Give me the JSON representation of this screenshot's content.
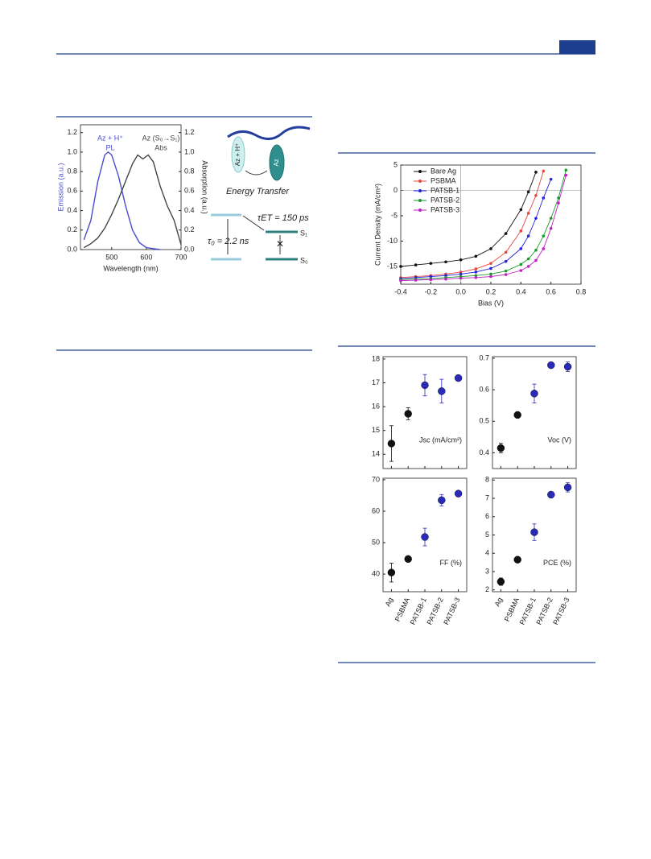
{
  "figure1": {
    "chart_data": {
      "type": "line",
      "xlabel": "Wavelength (nm)",
      "ylabel": "Emission (a.u.)",
      "y2label": "Absorption (a.u.)",
      "xlim": [
        410,
        700
      ],
      "xticks": [
        500,
        600,
        700
      ],
      "ylim": [
        0,
        1.28
      ],
      "yticks": [
        {
          "value": 0,
          "label": "0.0"
        },
        0.2,
        0.4,
        0.6,
        0.8,
        {
          "value": 1,
          "label": "1.0"
        },
        1.2
      ],
      "y2lim": [
        0,
        1.28
      ],
      "y2ticks": [
        {
          "value": 0,
          "label": "0.0"
        },
        0.2,
        0.4,
        0.6,
        0.8,
        {
          "value": 1,
          "label": "1.0"
        },
        1.2
      ],
      "series": [
        {
          "name": "Az + H⁺",
          "note_label": "PL",
          "color": "#4b4bd1",
          "x": [
            420,
            440,
            460,
            480,
            490,
            500,
            520,
            540,
            560,
            580,
            600,
            620,
            640
          ],
          "values": [
            0.1,
            0.3,
            0.7,
            0.97,
            1.0,
            0.97,
            0.75,
            0.45,
            0.2,
            0.07,
            0.02,
            0.01,
            0.0
          ]
        },
        {
          "name": "Az (S₀→S₁)",
          "note_label": "Abs",
          "color": "#444444",
          "axis": "y2",
          "x": [
            420,
            440,
            460,
            480,
            500,
            520,
            540,
            560,
            575,
            590,
            605,
            620,
            640,
            660,
            680,
            700
          ],
          "values": [
            0.02,
            0.06,
            0.12,
            0.22,
            0.36,
            0.52,
            0.7,
            0.88,
            0.97,
            0.93,
            0.97,
            0.9,
            0.65,
            0.45,
            0.3,
            0.05
          ]
        }
      ]
    }
  },
  "diagram": {
    "molecules": [
      "Az + H⁺",
      "Az"
    ],
    "caption": "Energy Transfer",
    "rates": [
      "τET = 150 ps",
      "τ₀ = 2.2 ns"
    ],
    "states": [
      "S₁",
      "S₀"
    ]
  },
  "figure2": {
    "chart_data": {
      "type": "line",
      "xlabel": "Bias (V)",
      "ylabel": "Current Density (mA/cm²)",
      "legend": "top-left",
      "xlim": [
        -0.4,
        0.8
      ],
      "xticks": [
        -0.4,
        -0.2,
        {
          "value": 0,
          "label": "0.0"
        },
        0.2,
        0.4,
        0.6,
        0.8
      ],
      "ylim": [
        -18.5,
        5
      ],
      "yticks": [
        5,
        0,
        -5,
        -10,
        -15
      ],
      "x": [
        -0.4,
        -0.3,
        -0.2,
        -0.1,
        0,
        0.1,
        0.2,
        0.3,
        0.4,
        0.45,
        0.5,
        0.55,
        0.6,
        0.65,
        0.7
      ],
      "series": [
        {
          "name": "Bare Ag",
          "color": "#111111",
          "values": [
            -15.0,
            -14.7,
            -14.4,
            -14.1,
            -13.7,
            -13.0,
            -11.5,
            -8.5,
            -3.8,
            -0.3,
            3.6,
            null,
            null,
            null,
            null
          ]
        },
        {
          "name": "PSBMA",
          "color": "#e8473d",
          "values": [
            -17.2,
            -17.0,
            -16.8,
            -16.5,
            -16.1,
            -15.5,
            -14.4,
            -12.2,
            -8.0,
            -4.5,
            -1.0,
            3.8,
            null,
            null,
            null
          ]
        },
        {
          "name": "PATSB-1",
          "color": "#2222e0",
          "values": [
            -17.4,
            -17.2,
            -17.0,
            -16.8,
            -16.5,
            -16.1,
            -15.4,
            -14.0,
            -11.5,
            -9.0,
            -5.5,
            -1.5,
            2.2,
            null,
            null
          ]
        },
        {
          "name": "PATSB-2",
          "color": "#1a9a2a",
          "values": [
            -17.6,
            -17.5,
            -17.4,
            -17.2,
            -17.0,
            -16.8,
            -16.5,
            -15.9,
            -14.6,
            -13.5,
            -11.8,
            -9.0,
            -5.5,
            -1.5,
            4.0
          ]
        },
        {
          "name": "PATSB-3",
          "color": "#c020c0",
          "values": [
            -17.8,
            -17.7,
            -17.6,
            -17.5,
            -17.3,
            -17.2,
            -17.0,
            -16.6,
            -15.8,
            -15.0,
            -13.8,
            -11.5,
            -7.5,
            -2.5,
            3.0
          ]
        }
      ]
    }
  },
  "figure3": {
    "categories": [
      "Ag",
      "PSBMA",
      "PATSB-1",
      "PATSB-2",
      "PATSB-3"
    ],
    "chart_data": [
      {
        "type": "errorbar",
        "label": "Jsc (mA/cm²)",
        "ylim": [
          13.4,
          18.1
        ],
        "yticks": [
          14,
          15,
          16,
          17,
          18
        ],
        "values": [
          14.45,
          15.7,
          16.9,
          16.65,
          17.2
        ],
        "errors": [
          0.75,
          0.25,
          0.45,
          0.5,
          0.1
        ],
        "colors": [
          "#111111",
          "#111111",
          "#2a2ab8",
          "#2a2ab8",
          "#2a2ab8"
        ]
      },
      {
        "type": "errorbar",
        "label": "Voc (V)",
        "ylim": [
          0.35,
          0.705
        ],
        "yticks": [
          0.4,
          0.5,
          0.6,
          0.7
        ],
        "values": [
          0.415,
          0.52,
          0.588,
          0.678,
          0.673
        ],
        "errors": [
          0.015,
          0.003,
          0.03,
          0.005,
          0.015
        ],
        "colors": [
          "#111111",
          "#111111",
          "#2a2ab8",
          "#2a2ab8",
          "#2a2ab8"
        ]
      },
      {
        "type": "errorbar",
        "label": "FF (%)",
        "ylim": [
          34.4,
          70.5
        ],
        "yticks": [
          40,
          50,
          60,
          70
        ],
        "values": [
          40.5,
          44.8,
          51.8,
          63.5,
          65.6
        ],
        "errors": [
          3,
          0.4,
          2.8,
          1.8,
          0.6
        ],
        "colors": [
          "#111111",
          "#111111",
          "#2a2ab8",
          "#2a2ab8",
          "#2a2ab8"
        ]
      },
      {
        "type": "errorbar",
        "label": "PCE (%)",
        "ylim": [
          1.9,
          8.1
        ],
        "yticks": [
          2,
          3,
          4,
          5,
          6,
          7,
          8
        ],
        "values": [
          2.45,
          3.65,
          5.15,
          7.2,
          7.6
        ],
        "errors": [
          0.2,
          0.1,
          0.45,
          0.15,
          0.25
        ],
        "colors": [
          "#111111",
          "#111111",
          "#2a2ab8",
          "#2a2ab8",
          "#2a2ab8"
        ]
      }
    ]
  }
}
